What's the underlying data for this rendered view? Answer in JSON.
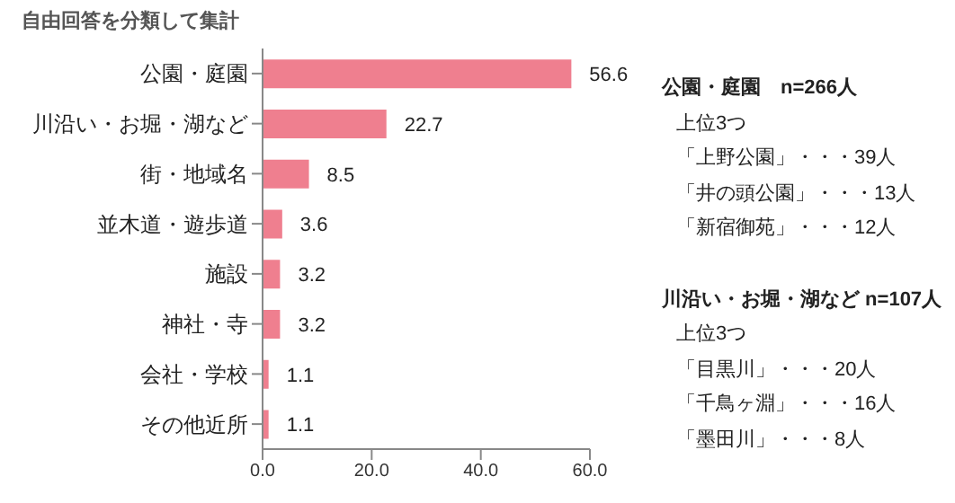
{
  "chart_data": {
    "type": "bar",
    "orientation": "horizontal",
    "title": "自由回答を分類して集計",
    "categories": [
      "公園・庭園",
      "川沿い・お堀・湖など",
      "街・地域名",
      "並木道・遊歩道",
      "施設",
      "神社・寺",
      "会社・学校",
      "その他近所"
    ],
    "values": [
      56.6,
      22.7,
      8.5,
      3.6,
      3.2,
      3.2,
      1.1,
      1.1
    ],
    "color": "#ef7f8f",
    "xlim": [
      0,
      60
    ],
    "xticks": [
      {
        "value": 0,
        "label": "0.0"
      },
      {
        "value": 20,
        "label": "20.0"
      },
      {
        "value": 40,
        "label": "40.0"
      },
      {
        "value": 60,
        "label": "60.0"
      }
    ],
    "data_labels": true,
    "grid": false,
    "annotations": [
      "公園・庭園　n=266人",
      "上位3つ",
      "「上野公園」・・・39人",
      "「井の頭公園」・・・13人",
      "「新宿御苑」・・・12人",
      "川沿い・お堀・湖など n=107人",
      "上位3つ",
      "「目黒川」・・・20人",
      "「千鳥ヶ淵」・・・16人",
      "「墨田川」・・・8人"
    ]
  }
}
